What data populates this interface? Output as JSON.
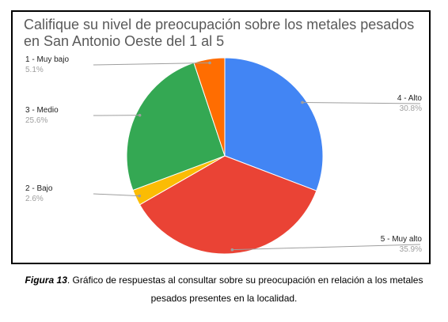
{
  "chart_data": {
    "type": "pie",
    "title": "Califique su nivel de preocupación sobre los metales pesados en San Antonio Oeste del 1 al 5",
    "title_lines": [
      "Califique su nivel de preocupación sobre los metales pesados",
      "en San Antonio Oeste del 1 al 5"
    ],
    "slices": [
      {
        "label": "4 - Alto",
        "value_label": "30.8%",
        "value": 30.8,
        "color": "#4285F4"
      },
      {
        "label": "5 - Muy alto",
        "value_label": "35.9%",
        "value": 35.9,
        "color": "#EA4335"
      },
      {
        "label": "2 - Bajo",
        "value_label": "2.6%",
        "value": 2.6,
        "color": "#FBBC04"
      },
      {
        "label": "3 - Medio",
        "value_label": "25.6%",
        "value": 25.6,
        "color": "#34A853"
      },
      {
        "label": "1 - Muy bajo",
        "value_label": "5.1%",
        "value": 5.1,
        "color": "#FF6D01"
      }
    ]
  },
  "caption": {
    "figure": "Figura 13",
    "text_line1": ". Gráfico de respuestas al consultar sobre su preocupación en relación a los metales",
    "text_line2": "pesados presentes en la localidad."
  }
}
